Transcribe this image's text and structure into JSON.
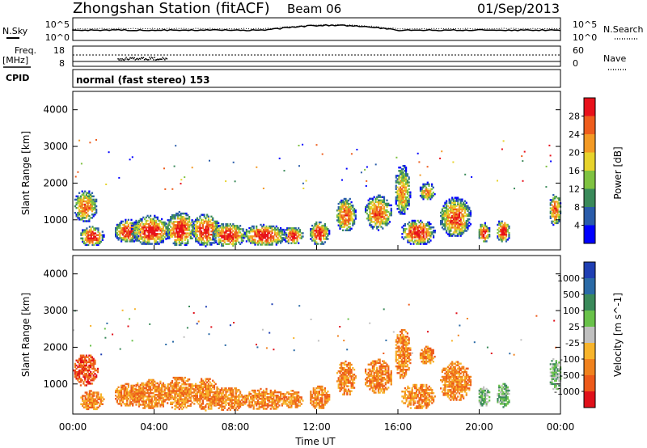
{
  "header": {
    "title": "Zhongshan Station (fitACF)",
    "beam": "Beam 06",
    "date": "01/Sep/2013"
  },
  "top_panels": {
    "nsky_label": "N.Sky",
    "nsearch_label": "N.Search",
    "freq_label_1": "Freq.",
    "freq_label_2": "[MHz]",
    "nave_label": "Nave",
    "cpid_label": "CPID",
    "mode_text": "normal (fast stereo) 153",
    "noise_left_ticks": [
      "10^5",
      "10^0"
    ],
    "noise_right_ticks": [
      "10^5",
      "10^0"
    ],
    "freq_ticks": [
      "18",
      "8"
    ],
    "nave_ticks": [
      "60",
      "0"
    ]
  },
  "chart_data": [
    {
      "type": "heatmap",
      "name": "power",
      "ylabel": "Slant Range [km]",
      "yticks": [
        "1000",
        "2000",
        "3000",
        "4000"
      ],
      "ylim": [
        180,
        4500
      ],
      "colorbar_label": "Power [dB]",
      "colorbar_ticks": [
        "4",
        "8",
        "12",
        "16",
        "20",
        "24",
        "28"
      ],
      "colors": [
        "#0000ff",
        "#2a5caa",
        "#3a8a5a",
        "#7fc241",
        "#e7d32c",
        "#f39a25",
        "#ee5d1d",
        "#e8111b"
      ],
      "clusters": [
        {
          "t": [
            0.0,
            1.2
          ],
          "r": [
            900,
            1800
          ]
        },
        {
          "t": [
            0.3,
            1.5
          ],
          "r": [
            250,
            800
          ]
        },
        {
          "t": [
            2.0,
            3.3
          ],
          "r": [
            350,
            1000
          ]
        },
        {
          "t": [
            2.8,
            4.8
          ],
          "r": [
            280,
            1100
          ]
        },
        {
          "t": [
            4.5,
            6.0
          ],
          "r": [
            250,
            1200
          ]
        },
        {
          "t": [
            5.8,
            7.2
          ],
          "r": [
            260,
            1150
          ]
        },
        {
          "t": [
            6.8,
            8.5
          ],
          "r": [
            230,
            900
          ]
        },
        {
          "t": [
            8.3,
            10.5
          ],
          "r": [
            260,
            850
          ]
        },
        {
          "t": [
            10.3,
            11.3
          ],
          "r": [
            300,
            800
          ]
        },
        {
          "t": [
            11.6,
            12.6
          ],
          "r": [
            280,
            950
          ]
        },
        {
          "t": [
            12.9,
            13.9
          ],
          "r": [
            650,
            1600
          ]
        },
        {
          "t": [
            14.3,
            15.7
          ],
          "r": [
            700,
            1650
          ]
        },
        {
          "t": [
            15.8,
            16.6
          ],
          "r": [
            1100,
            2500
          ]
        },
        {
          "t": [
            16.1,
            17.8
          ],
          "r": [
            280,
            1000
          ]
        },
        {
          "t": [
            17.0,
            17.8
          ],
          "r": [
            1500,
            2000
          ]
        },
        {
          "t": [
            18.0,
            19.6
          ],
          "r": [
            500,
            1600
          ]
        },
        {
          "t": [
            19.9,
            20.5
          ],
          "r": [
            350,
            900
          ]
        },
        {
          "t": [
            20.8,
            21.5
          ],
          "r": [
            350,
            1000
          ]
        },
        {
          "t": [
            23.4,
            24.0
          ],
          "r": [
            800,
            1700
          ]
        }
      ]
    },
    {
      "type": "heatmap",
      "name": "velocity",
      "ylabel": "Slant Range [km]",
      "yticks": [
        "1000",
        "2000",
        "3000",
        "4000"
      ],
      "ylim": [
        180,
        4500
      ],
      "colorbar_label": "Velocity [m s^-1]",
      "colorbar_ticks": [
        "1000",
        "500",
        "100",
        "25",
        "-25",
        "-100",
        "-500",
        "-1000"
      ],
      "colors": [
        "#1f3fb3",
        "#2a6aa6",
        "#3a8a5a",
        "#69c24a",
        "#c0c0c0",
        "#f7b42c",
        "#f0821e",
        "#ed5a1a",
        "#e0101a"
      ],
      "clusters": [
        {
          "t": [
            0.0,
            1.2
          ],
          "r": [
            900,
            1800
          ]
        },
        {
          "t": [
            0.3,
            1.5
          ],
          "r": [
            250,
            800
          ]
        },
        {
          "t": [
            2.0,
            3.3
          ],
          "r": [
            350,
            1000
          ]
        },
        {
          "t": [
            2.8,
            4.8
          ],
          "r": [
            280,
            1100
          ]
        },
        {
          "t": [
            4.5,
            6.0
          ],
          "r": [
            250,
            1200
          ]
        },
        {
          "t": [
            5.8,
            7.2
          ],
          "r": [
            260,
            1150
          ]
        },
        {
          "t": [
            6.8,
            8.5
          ],
          "r": [
            230,
            900
          ]
        },
        {
          "t": [
            8.3,
            10.5
          ],
          "r": [
            260,
            850
          ]
        },
        {
          "t": [
            10.3,
            11.3
          ],
          "r": [
            300,
            800
          ]
        },
        {
          "t": [
            11.6,
            12.6
          ],
          "r": [
            280,
            950
          ]
        },
        {
          "t": [
            12.9,
            13.9
          ],
          "r": [
            650,
            1600
          ]
        },
        {
          "t": [
            14.3,
            15.7
          ],
          "r": [
            700,
            1650
          ]
        },
        {
          "t": [
            15.8,
            16.6
          ],
          "r": [
            1100,
            2500
          ]
        },
        {
          "t": [
            16.1,
            17.8
          ],
          "r": [
            280,
            1000
          ]
        },
        {
          "t": [
            17.0,
            17.8
          ],
          "r": [
            1500,
            2000
          ]
        },
        {
          "t": [
            18.0,
            19.6
          ],
          "r": [
            500,
            1600
          ]
        },
        {
          "t": [
            19.9,
            20.5
          ],
          "r": [
            350,
            900
          ]
        },
        {
          "t": [
            20.8,
            21.5
          ],
          "r": [
            350,
            1000
          ]
        },
        {
          "t": [
            23.4,
            24.0
          ],
          "r": [
            800,
            1700
          ]
        }
      ]
    }
  ],
  "xaxis": {
    "label": "Time UT",
    "ticks": [
      "00:00",
      "04:00",
      "08:00",
      "12:00",
      "16:00",
      "20:00",
      "00:00"
    ],
    "xlim": [
      0,
      24
    ]
  }
}
